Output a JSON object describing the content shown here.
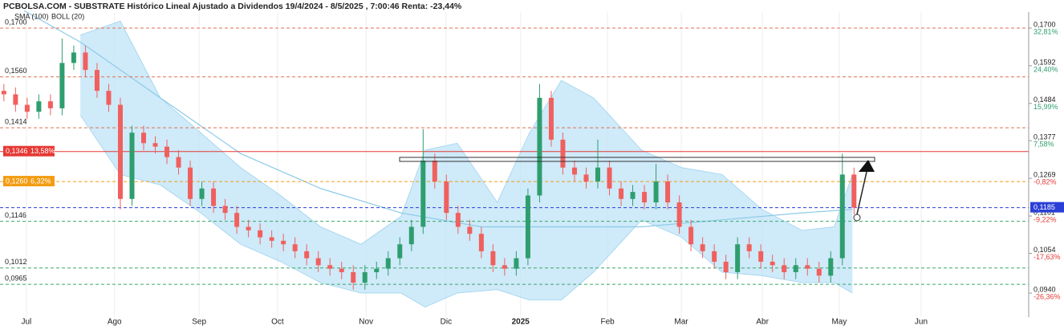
{
  "chart_data": {
    "type": "candlestick",
    "title": "PCBOLSA.COM - SUBSTRATE Histórico Lineal Ajustado a Dividendos 19/4/2024 - 8/5/2025 , 7:00:46 Renta: -23,44%",
    "legend": [
      "SMA (100)",
      "BOLL (20)"
    ],
    "up_color": "#2e9e6e",
    "down_color": "#f0605e",
    "xlim": [
      0,
      265
    ],
    "ylim": [
      0.0871,
      0.1746
    ],
    "xticks": [
      {
        "value": 6.8,
        "label": "Jul"
      },
      {
        "value": 29.5,
        "label": "Ago"
      },
      {
        "value": 51.3,
        "label": "Sep"
      },
      {
        "value": 71.5,
        "label": "Oct"
      },
      {
        "value": 94.3,
        "label": "Nov"
      },
      {
        "value": 114.9,
        "label": "Dic"
      },
      {
        "value": 134.1,
        "label": "2025"
      },
      {
        "value": 156.5,
        "label": "Feb"
      },
      {
        "value": 175.5,
        "label": "Mar"
      },
      {
        "value": 196.4,
        "label": "Abr"
      },
      {
        "value": 216.2,
        "label": "May"
      },
      {
        "value": 237.3,
        "label": "Jun"
      }
    ],
    "yticks": [
      {
        "value": 0.17,
        "label": "0,1700"
      },
      {
        "value": 0.1592,
        "label": "0,1592"
      },
      {
        "value": 0.1484,
        "label": "0,1484"
      },
      {
        "value": 0.1377,
        "label": "0,1377"
      },
      {
        "value": 0.1269,
        "label": "0,1269"
      },
      {
        "value": 0.1161,
        "label": "0,1161"
      },
      {
        "value": 0.1054,
        "label": "0,1054"
      },
      {
        "value": 0.094,
        "label": "0,0940"
      }
    ],
    "right_pct": [
      {
        "value": 0.17,
        "label": "32,81%",
        "color": "#2e9e6e"
      },
      {
        "value": 0.1592,
        "label": "24,40%",
        "color": "#2e9e6e"
      },
      {
        "value": 0.1484,
        "label": "15,99%",
        "color": "#2e9e6e"
      },
      {
        "value": 0.1377,
        "label": "7,58%",
        "color": "#2e9e6e"
      },
      {
        "value": 0.1269,
        "label": "-0,82%",
        "color": "#e53935"
      },
      {
        "value": 0.1161,
        "label": "-9,22%",
        "color": "#e53935"
      },
      {
        "value": 0.1054,
        "label": "-17,63%",
        "color": "#e53935"
      },
      {
        "value": 0.094,
        "label": "-26,36%",
        "color": "#e53935"
      }
    ],
    "levels": [
      {
        "value": 0.17,
        "label": "0,1700",
        "color": "#e07050",
        "dash": true
      },
      {
        "value": 0.156,
        "label": "0,1560",
        "color": "#e07050",
        "dash": true
      },
      {
        "value": 0.1414,
        "label": "0,1414",
        "color": "#e07050",
        "dash": true
      },
      {
        "value": 0.1346,
        "label": "0,1346",
        "pct": "13,58%",
        "color": "#e53935",
        "dash": false
      },
      {
        "value": 0.126,
        "label": "0,1260",
        "pct": "6,32%",
        "color": "#f39c12",
        "dash": true
      },
      {
        "value": 0.1146,
        "label": "0,1146",
        "color": "#3aa86b",
        "dash": true
      },
      {
        "value": 0.1012,
        "label": "0,1012",
        "color": "#3aa86b",
        "dash": true
      },
      {
        "value": 0.0965,
        "label": "0,0965",
        "color": "#3aa86b",
        "dash": true
      }
    ],
    "last": {
      "value": 0.1185,
      "label": "0,1185",
      "color": "#2a3fd6"
    },
    "x": [
      1,
      4,
      7,
      10,
      13,
      16,
      19,
      22,
      25,
      28,
      31,
      34,
      37,
      40,
      43,
      46,
      49,
      52,
      55,
      58,
      61,
      64,
      67,
      70,
      73,
      76,
      79,
      82,
      85,
      88,
      91,
      94,
      97,
      100,
      103,
      106,
      109,
      112,
      115,
      118,
      121,
      124,
      127,
      130,
      133,
      136,
      139,
      142,
      145,
      148,
      151,
      154,
      157,
      160,
      163,
      166,
      169,
      172,
      175,
      178,
      181,
      184,
      187,
      190,
      193,
      196,
      199,
      202,
      205,
      208,
      211,
      214,
      217,
      220
    ],
    "open": [
      0.152,
      0.151,
      0.148,
      0.146,
      0.149,
      0.147,
      0.16,
      0.163,
      0.158,
      0.152,
      0.148,
      0.121,
      0.14,
      0.137,
      0.136,
      0.133,
      0.13,
      0.121,
      0.124,
      0.119,
      0.117,
      0.113,
      0.112,
      0.11,
      0.109,
      0.108,
      0.106,
      0.104,
      0.102,
      0.101,
      0.1,
      0.097,
      0.1,
      0.101,
      0.104,
      0.108,
      0.113,
      0.132,
      0.126,
      0.117,
      0.113,
      0.111,
      0.106,
      0.102,
      0.101,
      0.104,
      0.122,
      0.15,
      0.138,
      0.13,
      0.128,
      0.126,
      0.13,
      0.124,
      0.121,
      0.123,
      0.12,
      0.126,
      0.12,
      0.113,
      0.108,
      0.106,
      0.103,
      0.1,
      0.108,
      0.106,
      0.103,
      0.102,
      0.1,
      0.102,
      0.101,
      0.099,
      0.104,
      0.128
    ],
    "high": [
      0.154,
      0.153,
      0.15,
      0.151,
      0.151,
      0.167,
      0.165,
      0.165,
      0.16,
      0.154,
      0.15,
      0.142,
      0.142,
      0.139,
      0.138,
      0.135,
      0.132,
      0.126,
      0.126,
      0.121,
      0.119,
      0.115,
      0.114,
      0.112,
      0.111,
      0.11,
      0.108,
      0.106,
      0.104,
      0.103,
      0.102,
      0.102,
      0.103,
      0.106,
      0.11,
      0.115,
      0.141,
      0.134,
      0.128,
      0.119,
      0.115,
      0.113,
      0.108,
      0.104,
      0.106,
      0.124,
      0.154,
      0.152,
      0.14,
      0.132,
      0.13,
      0.138,
      0.132,
      0.126,
      0.125,
      0.125,
      0.131,
      0.128,
      0.122,
      0.115,
      0.11,
      0.108,
      0.105,
      0.11,
      0.11,
      0.108,
      0.105,
      0.104,
      0.104,
      0.104,
      0.103,
      0.106,
      0.134,
      0.13
    ],
    "low": [
      0.149,
      0.146,
      0.144,
      0.144,
      0.145,
      0.145,
      0.158,
      0.156,
      0.15,
      0.146,
      0.118,
      0.119,
      0.135,
      0.134,
      0.131,
      0.128,
      0.119,
      0.119,
      0.117,
      0.115,
      0.111,
      0.11,
      0.108,
      0.107,
      0.106,
      0.104,
      0.102,
      0.1,
      0.099,
      0.098,
      0.095,
      0.095,
      0.098,
      0.099,
      0.102,
      0.106,
      0.111,
      0.124,
      0.115,
      0.111,
      0.109,
      0.104,
      0.1,
      0.099,
      0.099,
      0.102,
      0.12,
      0.136,
      0.128,
      0.126,
      0.124,
      0.124,
      0.122,
      0.119,
      0.119,
      0.118,
      0.118,
      0.118,
      0.111,
      0.106,
      0.104,
      0.101,
      0.098,
      0.098,
      0.104,
      0.101,
      0.1,
      0.098,
      0.098,
      0.099,
      0.097,
      0.097,
      0.102,
      0.1165
    ],
    "close": [
      0.151,
      0.148,
      0.146,
      0.149,
      0.147,
      0.16,
      0.163,
      0.158,
      0.152,
      0.148,
      0.121,
      0.14,
      0.137,
      0.136,
      0.133,
      0.13,
      0.121,
      0.124,
      0.119,
      0.117,
      0.113,
      0.112,
      0.11,
      0.109,
      0.108,
      0.106,
      0.104,
      0.102,
      0.101,
      0.1,
      0.097,
      0.1,
      0.101,
      0.104,
      0.108,
      0.113,
      0.132,
      0.126,
      0.117,
      0.113,
      0.111,
      0.106,
      0.102,
      0.101,
      0.104,
      0.122,
      0.15,
      0.138,
      0.13,
      0.128,
      0.126,
      0.13,
      0.124,
      0.121,
      0.123,
      0.12,
      0.126,
      0.12,
      0.113,
      0.108,
      0.106,
      0.103,
      0.1,
      0.108,
      0.106,
      0.103,
      0.102,
      0.1,
      0.102,
      0.101,
      0.099,
      0.104,
      0.128,
      0.1185
    ],
    "sma": {
      "color": "#8ccbe8",
      "x": [
        6.2,
        20.7,
        41.3,
        62,
        82.6,
        103.3,
        124,
        144.6,
        165.3,
        186,
        206.6,
        219.6
      ],
      "values": [
        0.175,
        0.166,
        0.15,
        0.134,
        0.124,
        0.117,
        0.113,
        0.113,
        0.113,
        0.115,
        0.117,
        0.118
      ]
    },
    "boll": {
      "color": "#bfe3f7",
      "x": [
        20.7,
        31,
        41.3,
        51.7,
        62,
        72.3,
        82.6,
        93,
        103.3,
        109.5,
        117.8,
        128.1,
        136.4,
        144.6,
        152.9,
        165.3,
        175.6,
        186,
        196.3,
        206.6,
        214.9,
        219.6
      ],
      "upper": [
        0.168,
        0.172,
        0.15,
        0.14,
        0.13,
        0.122,
        0.113,
        0.108,
        0.116,
        0.135,
        0.137,
        0.12,
        0.14,
        0.155,
        0.15,
        0.135,
        0.13,
        0.128,
        0.118,
        0.112,
        0.113,
        0.128
      ],
      "lower": [
        0.145,
        0.128,
        0.125,
        0.117,
        0.108,
        0.103,
        0.097,
        0.094,
        0.094,
        0.09,
        0.094,
        0.095,
        0.092,
        0.092,
        0.1,
        0.115,
        0.11,
        0.1,
        0.099,
        0.097,
        0.097,
        0.094
      ]
    }
  }
}
